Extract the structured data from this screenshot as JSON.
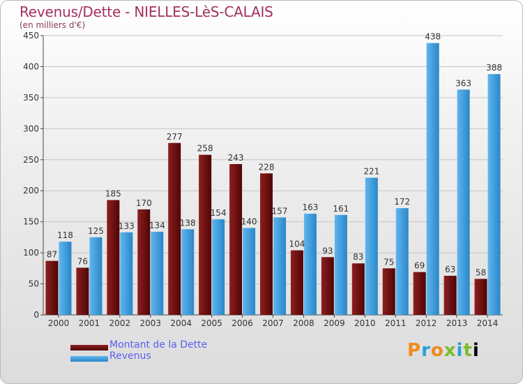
{
  "title": "Revenus/Dette - NIELLES-LèS-CALAIS",
  "subtitle": "(en milliers d'€)",
  "logo": {
    "text": "Proxiti",
    "letters": [
      "P",
      "r",
      "o",
      "x",
      "i",
      "t",
      "i"
    ]
  },
  "colors": {
    "dette_light": "#8e1e1e",
    "dette_dark": "#4e0606",
    "revenus_light": "#5eb6ee",
    "revenus_dark": "#2a86c8"
  },
  "chart_data": {
    "type": "bar",
    "categories": [
      "2000",
      "2001",
      "2002",
      "2003",
      "2004",
      "2005",
      "2006",
      "2007",
      "2008",
      "2009",
      "2010",
      "2011",
      "2012",
      "2013",
      "2014"
    ],
    "series": [
      {
        "name": "Montant de la Dette",
        "values": [
          87,
          76,
          185,
          170,
          277,
          258,
          243,
          228,
          104,
          93,
          83,
          75,
          69,
          63,
          58
        ]
      },
      {
        "name": "Revenus",
        "values": [
          118,
          125,
          133,
          134,
          138,
          154,
          140,
          157,
          163,
          161,
          221,
          172,
          438,
          363,
          388
        ]
      }
    ],
    "ylim": [
      0,
      450
    ],
    "yticks": [
      0,
      50,
      100,
      150,
      200,
      250,
      300,
      350,
      400,
      450
    ],
    "grid": true,
    "legend": "bottom-left"
  }
}
